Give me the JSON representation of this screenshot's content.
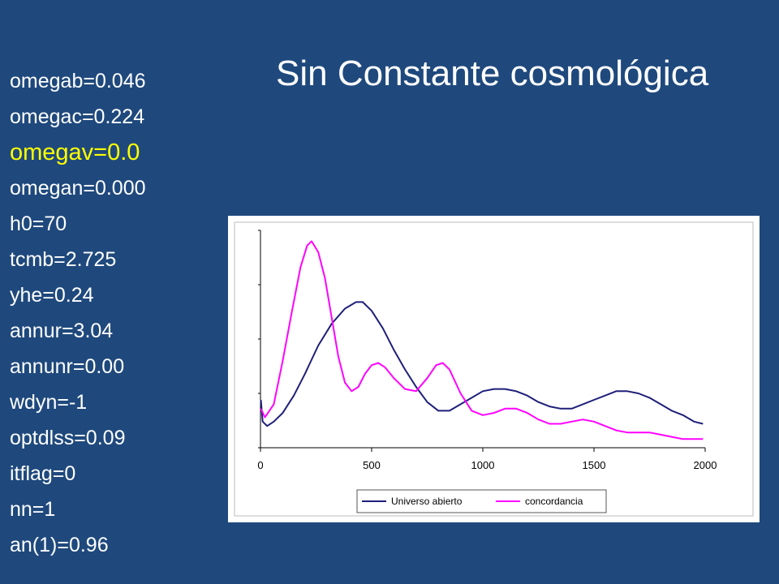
{
  "title": "Sin Constante cosmológica",
  "params": [
    {
      "text": "omegab=0.046",
      "highlight": false
    },
    {
      "text": "omegac=0.224",
      "highlight": false
    },
    {
      "text": "omegav=0.0",
      "highlight": true
    },
    {
      "text": "omegan=0.000",
      "highlight": false
    },
    {
      "text": "h0=70",
      "highlight": false
    },
    {
      "text": "tcmb=2.725",
      "highlight": false
    },
    {
      "text": "yhe=0.24",
      "highlight": false
    },
    {
      "text": "annur=3.04",
      "highlight": false
    },
    {
      "text": "annunr=0.00",
      "highlight": false
    },
    {
      "text": "wdyn=-1",
      "highlight": false
    },
    {
      "text": "optdlss=0.09",
      "highlight": false
    },
    {
      "text": "itflag=0",
      "highlight": false
    },
    {
      "text": "nn=1",
      "highlight": false
    },
    {
      "text": "an(1)=0.96",
      "highlight": false
    }
  ],
  "colors": {
    "background": "#1f497d",
    "highlight": "#ffff00",
    "series_open": "#1f1f7a",
    "series_concordance": "#ff00ff"
  },
  "chart_data": {
    "type": "line",
    "title": "",
    "xlabel": "",
    "ylabel": "",
    "xlim": [
      0,
      2000
    ],
    "ylim": [
      0,
      100
    ],
    "xticks": [
      0,
      500,
      1000,
      1500,
      2000
    ],
    "y_tick_labels": false,
    "grid": false,
    "legend_position": "bottom",
    "series": [
      {
        "name": "Universo abierto",
        "color": "#1f1f7a",
        "points": [
          [
            2,
            22
          ],
          [
            10,
            12
          ],
          [
            30,
            10
          ],
          [
            60,
            12
          ],
          [
            100,
            16
          ],
          [
            150,
            24
          ],
          [
            200,
            34
          ],
          [
            260,
            47
          ],
          [
            320,
            57
          ],
          [
            380,
            64
          ],
          [
            430,
            67
          ],
          [
            460,
            67
          ],
          [
            500,
            63
          ],
          [
            550,
            55
          ],
          [
            600,
            45
          ],
          [
            650,
            36
          ],
          [
            700,
            28
          ],
          [
            750,
            21
          ],
          [
            800,
            17
          ],
          [
            850,
            17
          ],
          [
            900,
            20
          ],
          [
            950,
            23
          ],
          [
            1000,
            26
          ],
          [
            1050,
            27
          ],
          [
            1100,
            27
          ],
          [
            1150,
            26
          ],
          [
            1200,
            24
          ],
          [
            1250,
            21
          ],
          [
            1300,
            19
          ],
          [
            1350,
            18
          ],
          [
            1400,
            18
          ],
          [
            1450,
            20
          ],
          [
            1500,
            22
          ],
          [
            1550,
            24
          ],
          [
            1600,
            26
          ],
          [
            1650,
            26
          ],
          [
            1700,
            25
          ],
          [
            1750,
            23
          ],
          [
            1800,
            20
          ],
          [
            1850,
            17
          ],
          [
            1900,
            15
          ],
          [
            1950,
            12
          ],
          [
            1990,
            11
          ]
        ]
      },
      {
        "name": "concordancia",
        "color": "#ff00ff",
        "points": [
          [
            2,
            18
          ],
          [
            20,
            14
          ],
          [
            60,
            20
          ],
          [
            100,
            40
          ],
          [
            140,
            62
          ],
          [
            180,
            83
          ],
          [
            210,
            93
          ],
          [
            230,
            95
          ],
          [
            260,
            90
          ],
          [
            290,
            78
          ],
          [
            320,
            60
          ],
          [
            350,
            42
          ],
          [
            380,
            30
          ],
          [
            410,
            26
          ],
          [
            440,
            28
          ],
          [
            470,
            34
          ],
          [
            500,
            38
          ],
          [
            530,
            39
          ],
          [
            560,
            37
          ],
          [
            600,
            32
          ],
          [
            650,
            27
          ],
          [
            700,
            26
          ],
          [
            750,
            32
          ],
          [
            790,
            38
          ],
          [
            820,
            39
          ],
          [
            850,
            36
          ],
          [
            900,
            25
          ],
          [
            950,
            17
          ],
          [
            1000,
            15
          ],
          [
            1050,
            16
          ],
          [
            1100,
            18
          ],
          [
            1150,
            18
          ],
          [
            1200,
            16
          ],
          [
            1250,
            13
          ],
          [
            1300,
            11
          ],
          [
            1350,
            11
          ],
          [
            1400,
            12
          ],
          [
            1450,
            13
          ],
          [
            1500,
            12
          ],
          [
            1550,
            10
          ],
          [
            1600,
            8
          ],
          [
            1650,
            7
          ],
          [
            1700,
            7
          ],
          [
            1750,
            7
          ],
          [
            1800,
            6
          ],
          [
            1850,
            5
          ],
          [
            1900,
            4
          ],
          [
            1950,
            4
          ],
          [
            1990,
            4
          ]
        ]
      }
    ]
  }
}
